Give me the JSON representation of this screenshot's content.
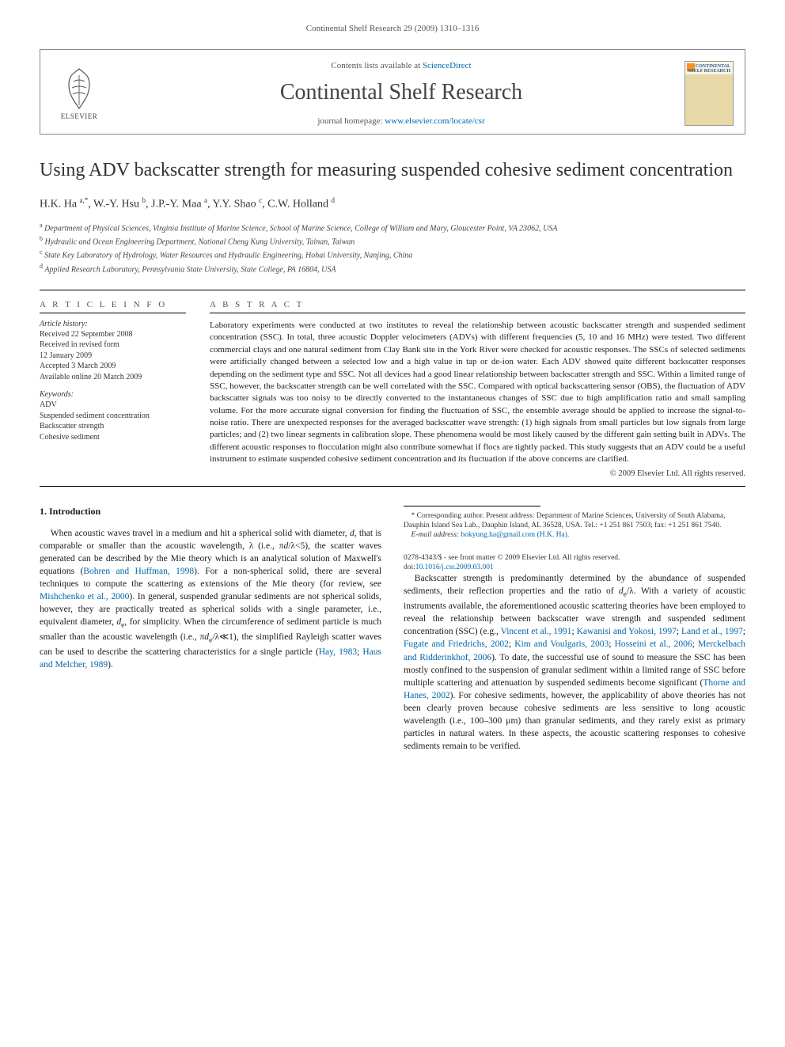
{
  "page_header": "Continental Shelf Research 29 (2009) 1310–1316",
  "journal_box": {
    "publisher_name": "ELSEVIER",
    "contents_prefix": "Contents lists available at ",
    "contents_link": "ScienceDirect",
    "journal_title": "Continental Shelf Research",
    "homepage_prefix": "journal homepage: ",
    "homepage_url": "www.elsevier.com/locate/csr",
    "cover_label_1": "CONTINENTAL",
    "cover_label_2": "SHELF RESEARCH"
  },
  "article": {
    "title": "Using ADV backscatter strength for measuring suspended cohesive sediment concentration",
    "authors_html": "H.K. Ha <span class='sup'>a,*</span>, W.-Y. Hsu <span class='sup'>b</span>, J.P.-Y. Maa <span class='sup'>a</span>, Y.Y. Shao <span class='sup'>c</span>, C.W. Holland <span class='sup'>d</span>",
    "affiliations": [
      {
        "sup": "a",
        "text": "Department of Physical Sciences, Virginia Institute of Marine Science, School of Marine Science, College of William and Mary, Gloucester Point, VA 23062, USA"
      },
      {
        "sup": "b",
        "text": "Hydraulic and Ocean Engineering Department, National Cheng Kung University, Tainan, Taiwan"
      },
      {
        "sup": "c",
        "text": "State Key Laboratory of Hydrology, Water Resources and Hydraulic Engineering, Hohai University, Nanjing, China"
      },
      {
        "sup": "d",
        "text": "Applied Research Laboratory, Pennsylvania State University, State College, PA 16804, USA"
      }
    ]
  },
  "article_info": {
    "heading": "A R T I C L E   I N F O",
    "history_heading": "Article history:",
    "history": "Received 22 September 2008\nReceived in revised form\n12 January 2009\nAccepted 3 March 2009\nAvailable online 20 March 2009",
    "keywords_heading": "Keywords:",
    "keywords": "ADV\nSuspended sediment concentration\nBackscatter strength\nCohesive sediment"
  },
  "abstract": {
    "heading": "A B S T R A C T",
    "text": "Laboratory experiments were conducted at two institutes to reveal the relationship between acoustic backscatter strength and suspended sediment concentration (SSC). In total, three acoustic Doppler velocimeters (ADVs) with different frequencies (5, 10 and 16 MHz) were tested. Two different commercial clays and one natural sediment from Clay Bank site in the York River were checked for acoustic responses. The SSCs of selected sediments were artificially changed between a selected low and a high value in tap or de-ion water. Each ADV showed quite different backscatter responses depending on the sediment type and SSC. Not all devices had a good linear relationship between backscatter strength and SSC. Within a limited range of SSC, however, the backscatter strength can be well correlated with the SSC. Compared with optical backscattering sensor (OBS), the fluctuation of ADV backscatter signals was too noisy to be directly converted to the instantaneous changes of SSC due to high amplification ratio and small sampling volume. For the more accurate signal conversion for finding the fluctuation of SSC, the ensemble average should be applied to increase the signal-to-noise ratio. There are unexpected responses for the averaged backscatter wave strength: (1) high signals from small particles but low signals from large particles; and (2) two linear segments in calibration slope. These phenomena would be most likely caused by the different gain setting built in ADVs. The different acoustic responses to flocculation might also contribute somewhat if flocs are tightly packed. This study suggests that an ADV could be a useful instrument to estimate suspended cohesive sediment concentration and its fluctuation if the above concerns are clarified.",
    "copyright": "© 2009 Elsevier Ltd. All rights reserved."
  },
  "body": {
    "section_number": "1.",
    "section_title": "Introduction",
    "para1_html": "When acoustic waves travel in a medium and hit a spherical solid with diameter, <i>d</i>, that is comparable or smaller than the acoustic wavelength, λ (i.e., π<i>d</i>/λ&lt;5), the scatter waves generated can be described by the Mie theory which is an analytical solution of Maxwell's equations (<span class='ref'>Bohren and Huffman, 1998</span>). For a non-spherical solid, there are several techniques to compute the scattering as extensions of the Mie theory (for review, see <span class='ref'>Mishchenko et al., 2000</span>). In general, suspended granular sediments are not spherical solids, however, they are practically treated as spherical solids with a single parameter, i.e., equivalent diameter, <i>d</i><sub>e</sub>, for simplicity. When the circumference of sediment particle is much smaller than the acoustic wavelength (i.e., π<i>d</i><sub>e</sub>/λ≪1), the simplified Rayleigh scatter waves can be used to describe the scattering characteristics for a single particle (<span class='ref'>Hay, 1983</span>; <span class='ref'>Haus and Melcher, 1989</span>).",
    "para2_html": "Backscatter strength is predominantly determined by the abundance of suspended sediments, their reflection properties and the ratio of <i>d</i><sub>e</sub>/λ. With a variety of acoustic instruments available, the aforementioned acoustic scattering theories have been employed to reveal the relationship between backscatter wave strength and suspended sediment concentration (SSC) (e.g., <span class='ref'>Vincent et al., 1991</span>; <span class='ref'>Kawanisi and Yokosi, 1997</span>; <span class='ref'>Land et al., 1997</span>; <span class='ref'>Fugate and Friedrichs, 2002</span>; <span class='ref'>Kim and Voulgaris, 2003</span>; <span class='ref'>Hosseini et al., 2006</span>; <span class='ref'>Merckelbach and Ridderinkhof, 2006</span>). To date, the successful use of sound to measure the SSC has been mostly confined to the suspension of granular sediment within a limited range of SSC before multiple scattering and attenuation by suspended sediments become significant (<span class='ref'>Thorne and Hanes, 2002</span>). For cohesive sediments, however, the applicability of above theories has not been clearly proven because cohesive sediments are less sensitive to long acoustic wavelength (i.e., 100–300 μm) than granular sediments, and they rarely exist as primary particles in natural waters. In these aspects, the acoustic scattering responses to cohesive sediments remain to be verified."
  },
  "footnote": {
    "corr_html": "* Corresponding author. Present address: Department of Marine Sciences, University of South Alabama, Dauphin Island Sea Lab., Dauphin Island, AL 36528, USA. Tel.: +1 251 861 7503; fax: +1 251 861 7540.",
    "email_label": "E-mail address:",
    "email": "hokyung.ha@gmail.com (H.K. Ha)."
  },
  "doi": {
    "line1": "0278-4343/$ - see front matter © 2009 Elsevier Ltd. All rights reserved.",
    "line2_prefix": "doi:",
    "line2_link": "10.1016/j.csr.2009.03.001"
  },
  "colors": {
    "link": "#0066aa",
    "text": "#1a1a1a",
    "muted": "#555555",
    "border": "#888888",
    "elsevier_orange": "#f7931e"
  }
}
